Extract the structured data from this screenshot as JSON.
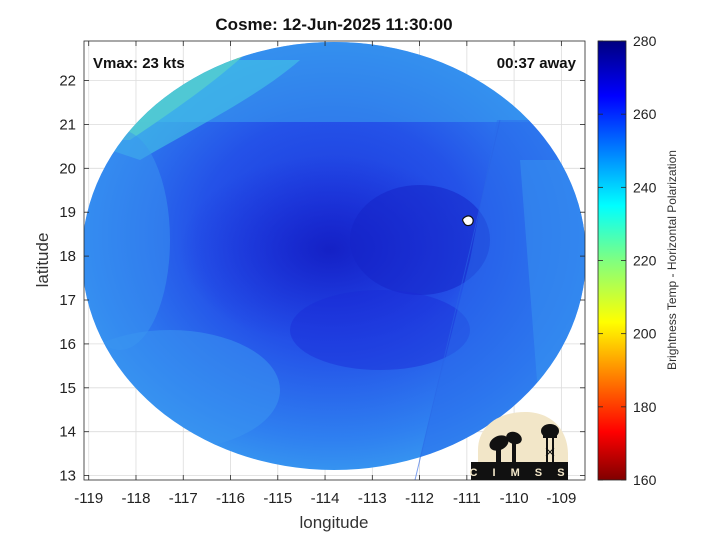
{
  "title": "Cosme: 12-Jun-2025 11:30:00",
  "vmax_label": "Vmax: 23 kts",
  "time_away_label": "00:37 away",
  "xlabel": "longitude",
  "ylabel": "latitude",
  "colorbar_label": "Brightness Temp - Horizontal Polarization",
  "logo_text": "CIMSS",
  "colors": {
    "background": "#ffffff",
    "deep": "#1a2ad8",
    "mid": "#2060ee",
    "light": "#3a96f0",
    "cyan": "#44c8e8",
    "green": "#6cd8a8",
    "logo": "#f2e6c8"
  },
  "chart_data": {
    "type": "heatmap",
    "title": "Cosme: 12-Jun-2025 11:30:00",
    "xlabel": "longitude",
    "ylabel": "latitude",
    "xlim": [
      -119.1,
      -108.5
    ],
    "ylim": [
      12.9,
      22.9
    ],
    "x_ticks": [
      -119,
      -118,
      -117,
      -116,
      -115,
      -114,
      -113,
      -112,
      -111,
      -110,
      -109
    ],
    "y_ticks": [
      13,
      14,
      15,
      16,
      17,
      18,
      19,
      20,
      21,
      22
    ],
    "grid": true,
    "colorbar": {
      "label": "Brightness Temp - Horizontal Polarization",
      "range": [
        160,
        280
      ],
      "ticks": [
        160,
        180,
        200,
        220,
        240,
        260,
        280
      ],
      "colormap": "jet"
    },
    "annotations": [
      "Vmax: 23 kts",
      "00:37 away"
    ],
    "storm_center": {
      "lon": -111.0,
      "lat": 18.8
    }
  }
}
